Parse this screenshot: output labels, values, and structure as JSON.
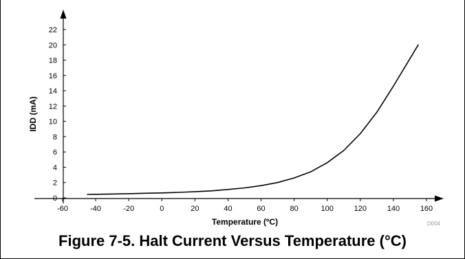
{
  "figure": {
    "caption": "Figure 7-5. Halt Current Versus Temperature (°C)",
    "code": "D004"
  },
  "chart_data": {
    "type": "line",
    "title": "",
    "xlabel": "Temperature (ºC)",
    "ylabel": "IDD (mA)",
    "xlim": [
      -60,
      160
    ],
    "ylim": [
      0,
      22
    ],
    "x_ticks": [
      -60,
      -40,
      -20,
      0,
      20,
      40,
      60,
      80,
      100,
      120,
      140,
      160
    ],
    "x_tick_labels": [
      "-60",
      "-40",
      "-20",
      "0",
      "20",
      "40",
      "60",
      "80",
      "100",
      "120",
      "140",
      "160"
    ],
    "y_ticks": [
      0,
      2,
      4,
      6,
      8,
      10,
      12,
      14,
      16,
      18,
      20,
      22
    ],
    "y_tick_labels": [
      "0",
      "2",
      "4",
      "6",
      "8",
      "10",
      "12",
      "14",
      "16",
      "18",
      "20",
      "22"
    ],
    "grid": false,
    "line_color": "#000000",
    "series": [
      {
        "x": [
          -45,
          -40,
          -30,
          -20,
          -10,
          0,
          10,
          20,
          30,
          40,
          50,
          60,
          70,
          80,
          90,
          100,
          110,
          120,
          130,
          140,
          150,
          155
        ],
        "y": [
          0.45,
          0.47,
          0.5,
          0.55,
          0.6,
          0.65,
          0.72,
          0.8,
          0.92,
          1.1,
          1.3,
          1.6,
          2.0,
          2.6,
          3.4,
          4.6,
          6.2,
          8.4,
          11.2,
          14.6,
          18.2,
          20.0
        ]
      }
    ]
  }
}
